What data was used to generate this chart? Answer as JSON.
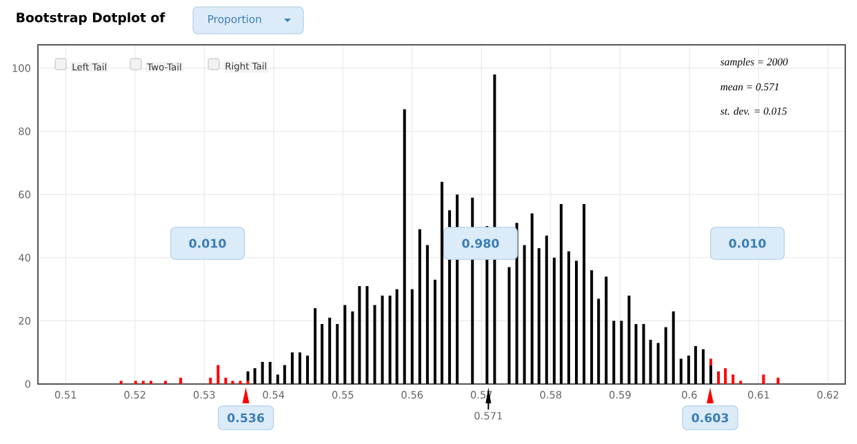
{
  "chart_data": {
    "type": "bar",
    "title": "Bootstrap Dotplot of",
    "stacked": true,
    "grid": true,
    "xlim": [
      0.506,
      0.6225
    ],
    "xticks": [
      0.51,
      0.52,
      0.53,
      0.54,
      0.55,
      0.56,
      0.57,
      0.58,
      0.59,
      0.6,
      0.61,
      0.62
    ],
    "ylim": [
      0,
      107.4
    ],
    "yticks": [
      0,
      20,
      40,
      60,
      80,
      100
    ],
    "x": [
      0.518,
      0.5201,
      0.5212,
      0.5223,
      0.5244,
      0.5266,
      0.5309,
      0.532,
      0.5331,
      0.5341,
      0.5352,
      0.5363,
      0.5373,
      0.5384,
      0.5395,
      0.5406,
      0.5416,
      0.5427,
      0.5438,
      0.5449,
      0.546,
      0.547,
      0.5481,
      0.5492,
      0.5503,
      0.5514,
      0.5524,
      0.5535,
      0.5546,
      0.5557,
      0.5568,
      0.5578,
      0.5589,
      0.56,
      0.5611,
      0.5622,
      0.5633,
      0.5643,
      0.5654,
      0.5665,
      0.5676,
      0.5687,
      0.5697,
      0.5708,
      0.5719,
      0.5729,
      0.574,
      0.5751,
      0.5762,
      0.5773,
      0.5783,
      0.5794,
      0.5805,
      0.5815,
      0.5826,
      0.5837,
      0.5848,
      0.5859,
      0.5869,
      0.588,
      0.5891,
      0.5902,
      0.5913,
      0.5923,
      0.5934,
      0.5944,
      0.5955,
      0.5966,
      0.5977,
      0.5988,
      0.5999,
      0.6009,
      0.602,
      0.6031,
      0.6042,
      0.6052,
      0.6063,
      0.6074,
      0.6107,
      0.6128
    ],
    "series": [
      {
        "color": "#ff0000",
        "values": [
          1,
          1,
          1,
          1,
          1,
          2,
          2,
          6,
          2,
          1,
          1,
          1,
          null,
          null,
          null,
          null,
          null,
          null,
          null,
          null,
          null,
          null,
          null,
          null,
          null,
          null,
          null,
          null,
          null,
          null,
          null,
          null,
          null,
          null,
          null,
          null,
          null,
          null,
          null,
          null,
          null,
          null,
          null,
          null,
          null,
          null,
          null,
          null,
          null,
          null,
          null,
          null,
          null,
          null,
          null,
          null,
          null,
          null,
          null,
          null,
          null,
          null,
          null,
          null,
          null,
          null,
          null,
          null,
          null,
          null,
          null,
          null,
          null,
          null,
          null,
          null,
          null,
          null,
          null,
          null
        ]
      },
      {
        "color": "#000000",
        "values": [
          null,
          null,
          null,
          null,
          null,
          null,
          null,
          null,
          null,
          null,
          null,
          3,
          5,
          7,
          7,
          3,
          6,
          10,
          10,
          9,
          24,
          19,
          21,
          19,
          25,
          23,
          31,
          31,
          25,
          28,
          28,
          30,
          87,
          30,
          49,
          44,
          33,
          64,
          55,
          60,
          null,
          59,
          null,
          50,
          98,
          null,
          37,
          51,
          44,
          54,
          43,
          47,
          40,
          57,
          42,
          39,
          57,
          36,
          27,
          34,
          20,
          20,
          28,
          19,
          19,
          14,
          13,
          18,
          23,
          8,
          9,
          12,
          11,
          6,
          null,
          null,
          null,
          null,
          null,
          null
        ]
      },
      {
        "color": "#ff0000",
        "values": [
          null,
          null,
          null,
          null,
          null,
          null,
          null,
          null,
          null,
          null,
          null,
          null,
          null,
          null,
          null,
          null,
          null,
          null,
          null,
          null,
          null,
          null,
          null,
          null,
          null,
          null,
          null,
          null,
          null,
          null,
          null,
          null,
          null,
          null,
          null,
          null,
          null,
          null,
          null,
          null,
          null,
          null,
          null,
          null,
          null,
          null,
          null,
          null,
          null,
          null,
          null,
          null,
          null,
          null,
          null,
          null,
          null,
          null,
          null,
          null,
          null,
          null,
          null,
          null,
          null,
          null,
          null,
          null,
          null,
          null,
          null,
          null,
          null,
          2,
          4,
          5,
          3,
          1,
          3,
          2
        ]
      }
    ],
    "annotations": [
      "Proportion",
      "Left Tail",
      "Two-Tail",
      "Right Tail",
      "samples = 2000",
      "mean = 0.571",
      "st. dev. = 0.015",
      "0.010",
      "0.980",
      "0.010",
      {
        "text": "0.536",
        "x": 0.536,
        "y": 0
      },
      {
        "text": "0.571",
        "x": 0.571,
        "y": 0
      },
      {
        "text": "0.603",
        "x": 0.603,
        "y": 0
      }
    ]
  }
}
